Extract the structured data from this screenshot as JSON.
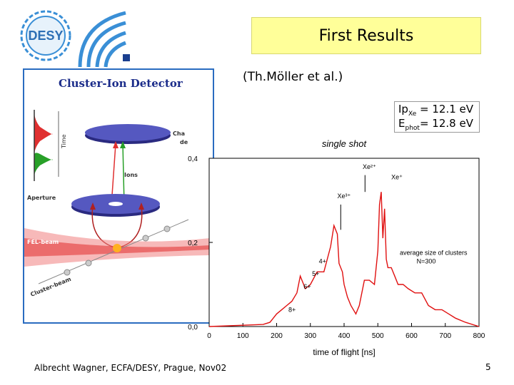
{
  "header": {
    "title": "First Results",
    "credit": "(Th.Möller et al.)"
  },
  "logo": {
    "text": "DESY"
  },
  "detector_panel": {
    "title": "Cluster-Ion Detector",
    "labels": {
      "time": "Time",
      "channel_plate": "Cha",
      "channel_plate_2": "de",
      "ions": "Ions",
      "aperture": "Aperture",
      "fel_beam": "FEL-beam",
      "cluster_beam": "Cluster-beam"
    }
  },
  "energy": {
    "ip_prefix": "Ip",
    "ip_sub": "Xe",
    "ip_value": " = 12.1 eV",
    "ephot_prefix": "E",
    "ephot_sub": "phot",
    "ephot_value": "= 12.8 eV"
  },
  "chart_data": {
    "type": "line",
    "title": "single shot",
    "xlabel": "time of flight [ns]",
    "ylabel": "",
    "xlim": [
      0,
      800
    ],
    "ylim": [
      0,
      0.4
    ],
    "x_ticks": [
      "0",
      "100",
      "200",
      "300",
      "400",
      "500",
      "600",
      "700",
      "800"
    ],
    "y_ticks": [
      "0,0",
      "0,2",
      "0,4"
    ],
    "color": "#e01010",
    "annotations": {
      "xe1": "Xe⁺",
      "xe2": "Xe²⁺",
      "xe3": "Xe³⁺",
      "q4": "4+",
      "q5": "5+",
      "q6": "6+",
      "q8": "8+",
      "cluster1": "average size of clusters",
      "cluster2": "N=300"
    },
    "series": [
      {
        "x": [
          0,
          100,
          160,
          180,
          200,
          215,
          230,
          245,
          260,
          270,
          285,
          300,
          320,
          340,
          360,
          370,
          380,
          385,
          395,
          400,
          410,
          420,
          435,
          445,
          460,
          475,
          490,
          500,
          505,
          510,
          515,
          520,
          525,
          530,
          540,
          550,
          560,
          575,
          590,
          610,
          630,
          650,
          670,
          690,
          710,
          730,
          760,
          800
        ],
        "y": [
          0,
          0.003,
          0.005,
          0.01,
          0.03,
          0.04,
          0.05,
          0.06,
          0.08,
          0.12,
          0.09,
          0.1,
          0.13,
          0.13,
          0.19,
          0.24,
          0.22,
          0.15,
          0.13,
          0.1,
          0.07,
          0.05,
          0.03,
          0.05,
          0.11,
          0.11,
          0.1,
          0.18,
          0.29,
          0.32,
          0.21,
          0.28,
          0.16,
          0.14,
          0.14,
          0.12,
          0.1,
          0.1,
          0.09,
          0.08,
          0.08,
          0.05,
          0.04,
          0.04,
          0.03,
          0.02,
          0.01,
          0.0
        ]
      }
    ]
  },
  "footer": {
    "text": "Albrecht Wagner, ECFA/DESY, Prague, Nov02",
    "page": "5"
  }
}
